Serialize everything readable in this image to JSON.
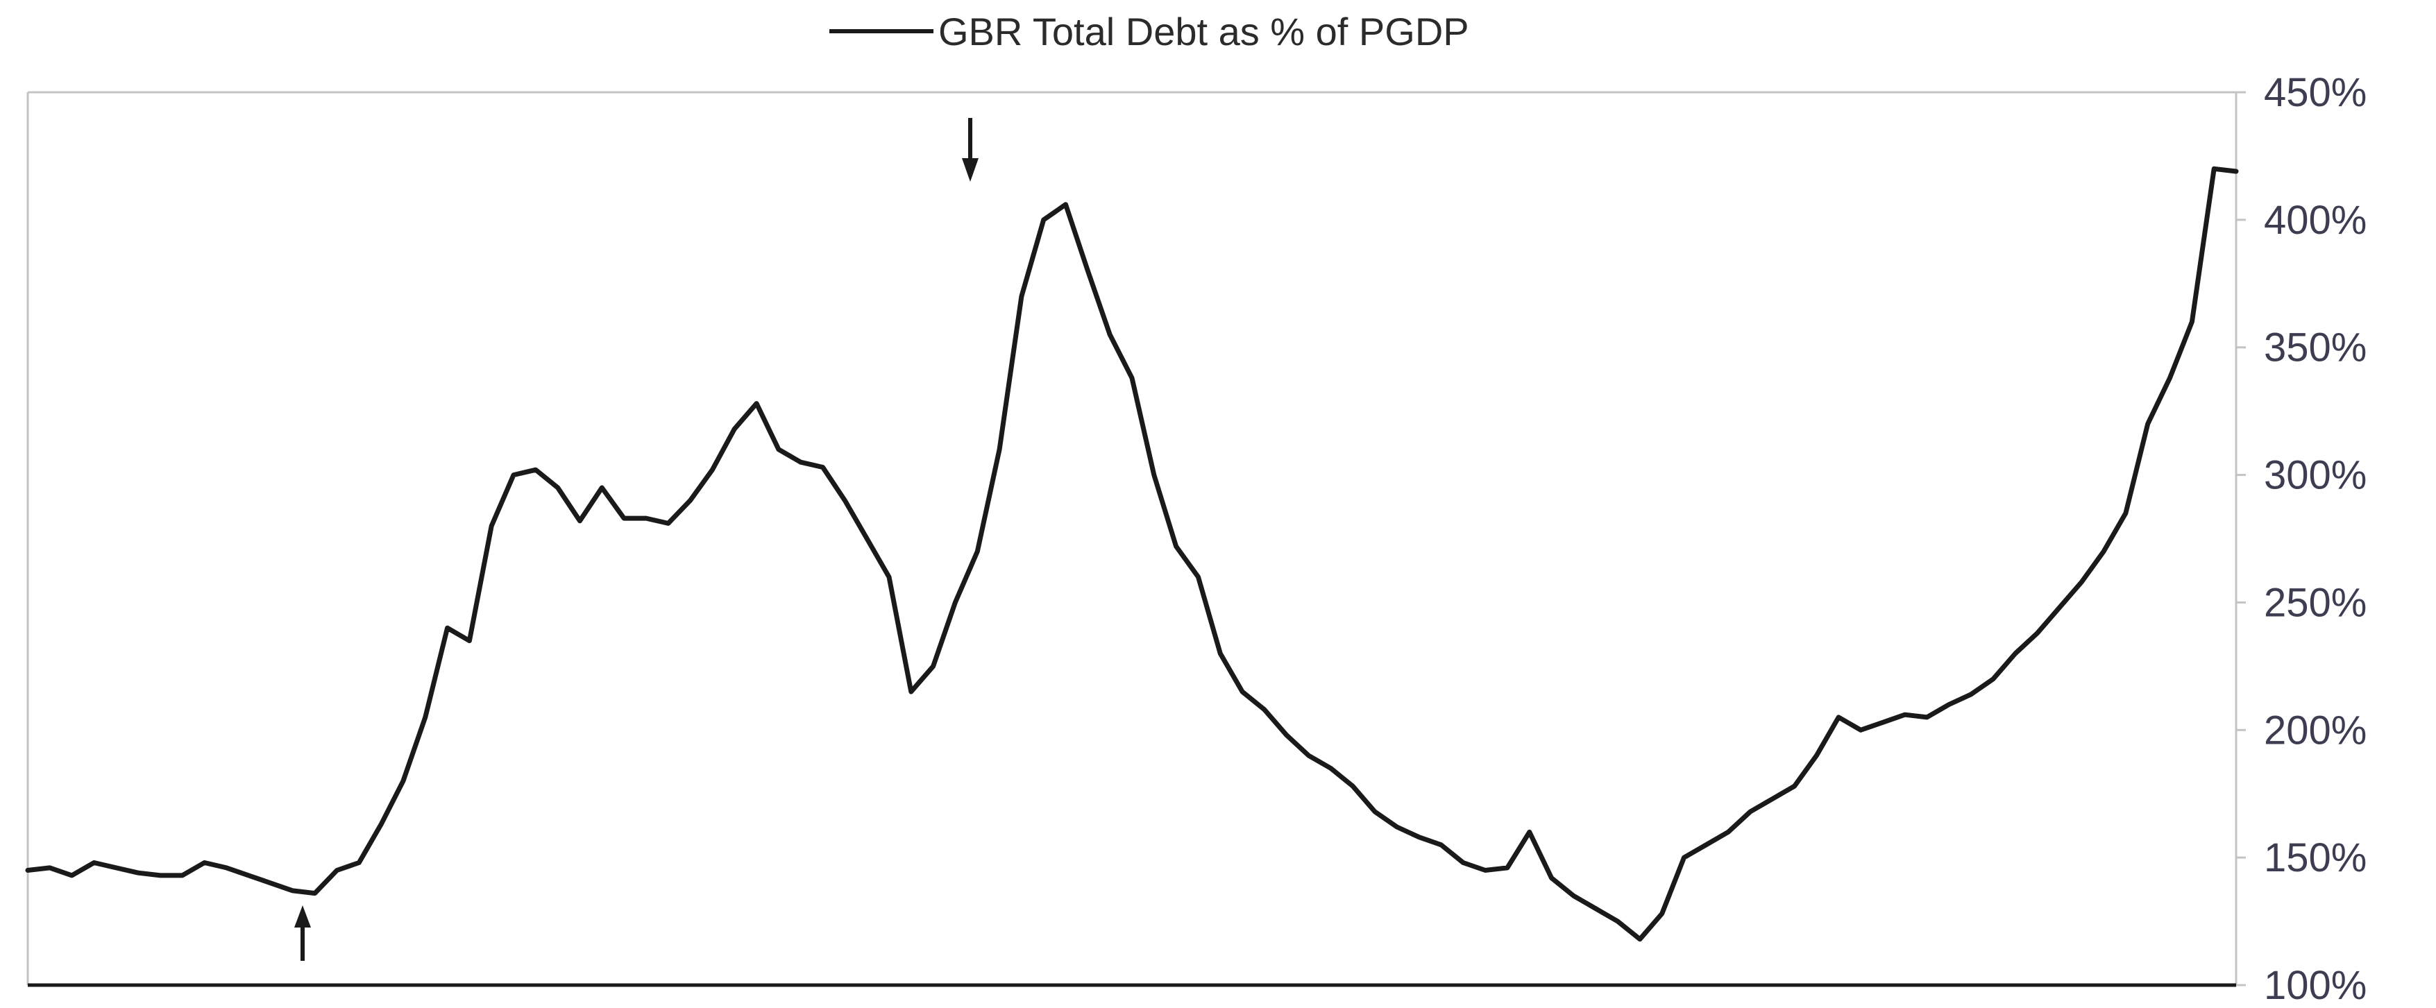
{
  "chart_data": {
    "type": "line",
    "title": "",
    "xlabel": "",
    "ylabel": "",
    "ylim": [
      100,
      450
    ],
    "y_ticks": [
      "100%",
      "150%",
      "200%",
      "250%",
      "300%",
      "350%",
      "400%",
      "450%"
    ],
    "y_axis_side": "right",
    "grid": false,
    "legend_position": "top-center",
    "series": [
      {
        "name": "GBR Total Debt as % of PGDP",
        "color": "#1a1a1a",
        "x": [
          0,
          1,
          2,
          3,
          4,
          5,
          6,
          7,
          8,
          9,
          10,
          11,
          12,
          13,
          14,
          15,
          16,
          17,
          18,
          19,
          20,
          21,
          22,
          23,
          24,
          25,
          26,
          27,
          28,
          29,
          30,
          31,
          32,
          33,
          34,
          35,
          36,
          37,
          38,
          39,
          40,
          41,
          42,
          43,
          44,
          45,
          46,
          47,
          48,
          49,
          50,
          51,
          52,
          53,
          54,
          55,
          56,
          57,
          58,
          59,
          60,
          61,
          62,
          63,
          64,
          65,
          66,
          67,
          68,
          69,
          70,
          71,
          72,
          73,
          74,
          75,
          76,
          77,
          78,
          79,
          80,
          81,
          82,
          83,
          84,
          85,
          86,
          87,
          88,
          89,
          90,
          91,
          92,
          93,
          94,
          95,
          96,
          97,
          98,
          99,
          100
        ],
        "values": [
          145,
          146,
          143,
          148,
          146,
          144,
          143,
          143,
          148,
          146,
          143,
          140,
          137,
          136,
          145,
          148,
          163,
          180,
          205,
          240,
          235,
          280,
          300,
          302,
          295,
          282,
          295,
          283,
          283,
          281,
          290,
          302,
          318,
          328,
          310,
          305,
          303,
          290,
          275,
          260,
          215,
          225,
          250,
          270,
          310,
          370,
          400,
          406,
          380,
          355,
          338,
          300,
          272,
          260,
          230,
          215,
          208,
          198,
          190,
          185,
          178,
          168,
          162,
          158,
          155,
          148,
          145,
          146,
          160,
          142,
          135,
          130,
          125,
          118,
          128,
          150,
          155,
          160,
          168,
          173,
          178,
          190,
          205,
          200,
          203,
          206,
          205,
          210,
          214,
          220,
          230,
          238,
          248,
          258,
          270,
          285,
          320,
          338,
          360,
          420,
          419
        ]
      }
    ]
  }
}
